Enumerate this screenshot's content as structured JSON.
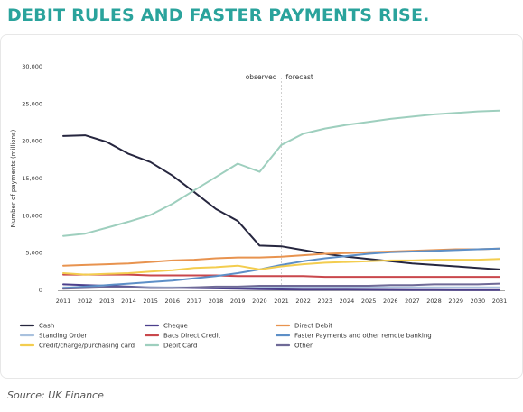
{
  "page": {
    "title": "DEBIT RULES AND FASTER PAYMENTS RISE.",
    "source": "Source: UK Finance"
  },
  "chart_data": {
    "type": "line",
    "title": "",
    "xlabel": "",
    "ylabel": "Number of payments (millions)",
    "x": [
      "2011",
      "2012",
      "2013",
      "2014",
      "2015",
      "2016",
      "2017",
      "2018",
      "2019",
      "2020",
      "2021",
      "2022",
      "2023",
      "2024",
      "2025",
      "2026",
      "2027",
      "2028",
      "2029",
      "2030",
      "2031"
    ],
    "yticks": [
      "0",
      "5,000",
      "10,000",
      "15,000",
      "20,000",
      "25,000",
      "30,000"
    ],
    "ylim": [
      0,
      30000
    ],
    "grid": false,
    "legend_position": "bottom",
    "annotations": {
      "observed": "observed",
      "forecast": "forecast",
      "divider_at": "2021"
    },
    "series": [
      {
        "name": "Cash",
        "color": "#26263f",
        "values": [
          20700,
          20800,
          19900,
          18300,
          17200,
          15400,
          13200,
          10900,
          9300,
          6000,
          5900,
          5400,
          4900,
          4500,
          4200,
          3900,
          3600,
          3400,
          3200,
          3000,
          2800
        ]
      },
      {
        "name": "Cheque",
        "color": "#4b3f8c",
        "values": [
          800,
          700,
          600,
          500,
          400,
          350,
          300,
          250,
          200,
          150,
          120,
          100,
          90,
          80,
          70,
          60,
          50,
          50,
          40,
          40,
          30
        ]
      },
      {
        "name": "Direct Debit",
        "color": "#e8934f",
        "values": [
          3300,
          3400,
          3500,
          3600,
          3800,
          4000,
          4100,
          4300,
          4400,
          4400,
          4500,
          4700,
          4900,
          5000,
          5100,
          5200,
          5300,
          5400,
          5500,
          5500,
          5600
        ]
      },
      {
        "name": "Standing Order",
        "color": "#a9c1de",
        "values": [
          400,
          400,
          400,
          400,
          400,
          400,
          400,
          400,
          400,
          400,
          400,
          400,
          400,
          400,
          400,
          400,
          400,
          400,
          400,
          400,
          400
        ]
      },
      {
        "name": "Bacs Direct Credit",
        "color": "#c9474c",
        "values": [
          2100,
          2100,
          2100,
          2100,
          2000,
          2000,
          2000,
          2000,
          1900,
          1900,
          1900,
          1900,
          1800,
          1800,
          1800,
          1800,
          1800,
          1800,
          1800,
          1800,
          1800
        ]
      },
      {
        "name": "Faster Payments and other remote banking",
        "color": "#5d8fc7",
        "values": [
          300,
          500,
          700,
          900,
          1100,
          1300,
          1600,
          1900,
          2300,
          2800,
          3400,
          3900,
          4300,
          4600,
          4900,
          5100,
          5200,
          5300,
          5400,
          5500,
          5600
        ]
      },
      {
        "name": "Credit/charge/purchasing card",
        "color": "#f3cd4f",
        "values": [
          2300,
          2100,
          2200,
          2300,
          2500,
          2700,
          3000,
          3100,
          3300,
          2800,
          3200,
          3500,
          3700,
          3800,
          3900,
          4000,
          4000,
          4100,
          4100,
          4100,
          4200
        ]
      },
      {
        "name": "Debit Card",
        "color": "#9ecfbe",
        "values": [
          7300,
          7600,
          8400,
          9200,
          10100,
          11600,
          13400,
          15200,
          17000,
          15900,
          19500,
          21000,
          21700,
          22200,
          22600,
          23000,
          23300,
          23600,
          23800,
          24000,
          24100
        ]
      },
      {
        "name": "Other",
        "color": "#6f6a97",
        "values": [
          200,
          300,
          400,
          400,
          300,
          300,
          400,
          500,
          500,
          600,
          600,
          600,
          600,
          600,
          600,
          700,
          700,
          800,
          800,
          800,
          900
        ]
      }
    ]
  }
}
